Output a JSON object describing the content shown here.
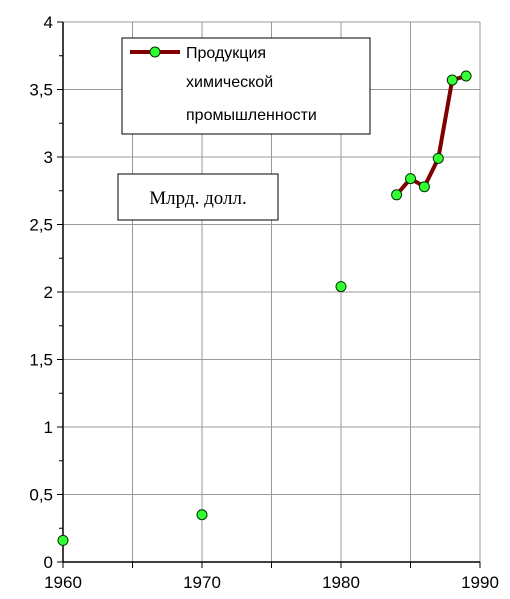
{
  "chart_data": {
    "type": "line",
    "title": "",
    "xlabel": "",
    "ylabel": "",
    "xlim": [
      1960,
      1990
    ],
    "ylim": [
      0,
      4
    ],
    "x_ticks": [
      1960,
      1970,
      1980,
      1990
    ],
    "y_ticks": [
      0,
      0.5,
      1,
      1.5,
      2,
      2.5,
      3,
      3.5,
      4
    ],
    "x_tick_labels": [
      "1960",
      "1970",
      "1980",
      "1990"
    ],
    "y_tick_labels": [
      "0",
      "0,5",
      "1",
      "1,5",
      "2",
      "2,5",
      "3",
      "3,5",
      "4"
    ],
    "grid": true,
    "legend_position": "top-center",
    "unit_label": "Млрд. долл.",
    "series": [
      {
        "name": "Продукция химической промышленности",
        "legend_lines": [
          "Продукция",
          "химической",
          "промышленности"
        ],
        "line_color": "#800000",
        "marker_color": "#33ff33",
        "points": [
          {
            "x": 1960,
            "y": 0.16
          },
          {
            "x": 1970,
            "y": 0.35
          },
          {
            "x": 1980,
            "y": 2.04
          },
          {
            "x": 1984,
            "y": 2.72
          },
          {
            "x": 1985,
            "y": 2.84
          },
          {
            "x": 1986,
            "y": 2.78
          },
          {
            "x": 1987,
            "y": 2.99
          },
          {
            "x": 1988,
            "y": 3.57
          },
          {
            "x": 1989,
            "y": 3.6
          }
        ],
        "connected_from_x": 1984
      }
    ]
  }
}
